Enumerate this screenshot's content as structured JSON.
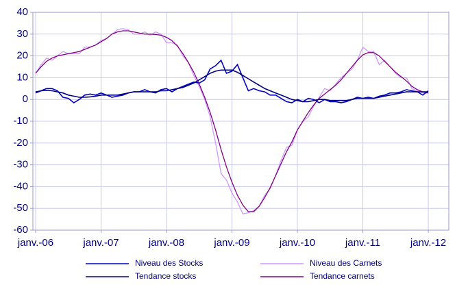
{
  "chart_data": {
    "type": "line",
    "categories": [
      "janv.-06",
      null,
      null,
      null,
      null,
      null,
      null,
      null,
      null,
      null,
      null,
      null,
      "janv.-07",
      null,
      null,
      null,
      null,
      null,
      null,
      null,
      null,
      null,
      null,
      null,
      "janv.-08",
      null,
      null,
      null,
      null,
      null,
      null,
      null,
      null,
      null,
      null,
      null,
      "janv.-09",
      null,
      null,
      null,
      null,
      null,
      null,
      null,
      null,
      null,
      null,
      null,
      "janv.-10",
      null,
      null,
      null,
      null,
      null,
      null,
      null,
      null,
      null,
      null,
      null,
      "janv.-11",
      null,
      null,
      null,
      null,
      null,
      null,
      null,
      null,
      null,
      null,
      null,
      "janv.-12"
    ],
    "series": [
      {
        "name": "Niveau des Stocks",
        "color": "#0000c0",
        "values": [
          3,
          4,
          5,
          5,
          4,
          1,
          0.5,
          -1.5,
          0,
          2,
          2.5,
          2,
          3,
          2,
          1,
          1.5,
          2,
          3,
          3.5,
          3.5,
          4.5,
          3.5,
          3,
          4.5,
          5,
          3.5,
          5,
          6,
          7,
          8,
          7.5,
          9,
          14,
          15.5,
          18,
          12,
          13,
          16,
          10,
          4,
          5,
          4,
          3.5,
          2,
          2,
          0.5,
          -1,
          -1.5,
          0,
          -1,
          0.5,
          0,
          -1.5,
          0,
          -1,
          -1,
          -1.5,
          -1,
          0,
          1,
          0.5,
          1,
          0.5,
          1.5,
          2,
          3,
          3,
          3.5,
          4.5,
          4,
          3.5,
          2,
          4
        ]
      },
      {
        "name": "Niveau des Carnets",
        "color": "#cc99ff",
        "values": [
          12,
          16,
          19,
          18,
          20,
          22,
          21,
          21,
          21,
          24,
          24,
          25,
          27,
          28,
          30,
          32,
          32.5,
          32,
          30,
          30,
          31,
          29.5,
          31,
          30,
          26,
          26,
          25,
          20,
          17,
          11,
          6,
          0,
          -8,
          -20,
          -34,
          -37,
          -43,
          -47,
          -52.5,
          -52,
          -51,
          -49,
          -44,
          -41,
          -35,
          -28,
          -22,
          -21,
          -14,
          -10,
          -8,
          -3,
          1,
          5,
          4,
          7,
          10,
          12,
          14,
          18,
          24,
          22,
          22,
          16,
          18,
          15,
          12,
          10,
          10,
          5,
          4,
          3,
          3
        ]
      },
      {
        "name": "Tendance stocks",
        "color": "#000080",
        "values": [
          3.5,
          4,
          4.2,
          4,
          3.5,
          3,
          2,
          1.5,
          1,
          1,
          1.2,
          1.5,
          2,
          2,
          2,
          2,
          2.5,
          3,
          3.5,
          3.5,
          3.5,
          3.5,
          3.5,
          4,
          4,
          4.5,
          5,
          5.5,
          6.5,
          7.5,
          9,
          10.5,
          12,
          13,
          13.5,
          13.5,
          13.5,
          12.5,
          11,
          9.5,
          8,
          6.5,
          5,
          4,
          3,
          2,
          1,
          0,
          -0.5,
          -1,
          -1,
          -0.5,
          0,
          0,
          -0.5,
          -0.5,
          -0.5,
          -0.5,
          0,
          0.5,
          0.5,
          0.5,
          0.5,
          1,
          1.5,
          2,
          2.5,
          3,
          3.5,
          3.5,
          3.5,
          3.5,
          3.5
        ]
      },
      {
        "name": "Tendance carnets",
        "color": "#800080",
        "values": [
          12,
          15,
          17.5,
          19,
          20,
          20.5,
          21,
          21.5,
          22,
          23,
          24,
          25,
          26.5,
          28,
          30,
          31,
          31.5,
          31.5,
          31,
          30.5,
          30,
          30,
          29.8,
          29.5,
          28.5,
          27,
          24.5,
          21,
          17,
          12.5,
          7,
          1,
          -6,
          -14,
          -23,
          -31,
          -38,
          -44,
          -48.5,
          -51.5,
          -51.5,
          -49,
          -45,
          -40.5,
          -35,
          -29.5,
          -24,
          -19.5,
          -14,
          -10,
          -6,
          -2.5,
          0.5,
          2.5,
          4.5,
          6.5,
          9,
          12,
          15,
          18,
          20.5,
          21.5,
          21.5,
          20,
          17.5,
          15,
          12.5,
          10.5,
          8.5,
          6,
          4.5,
          3.5,
          3
        ]
      }
    ],
    "ylim": [
      -60,
      40
    ],
    "yticks": [
      -60,
      -50,
      -40,
      -30,
      -20,
      -10,
      0,
      10,
      20,
      30,
      40
    ],
    "grid": true,
    "legend": "bottom"
  }
}
